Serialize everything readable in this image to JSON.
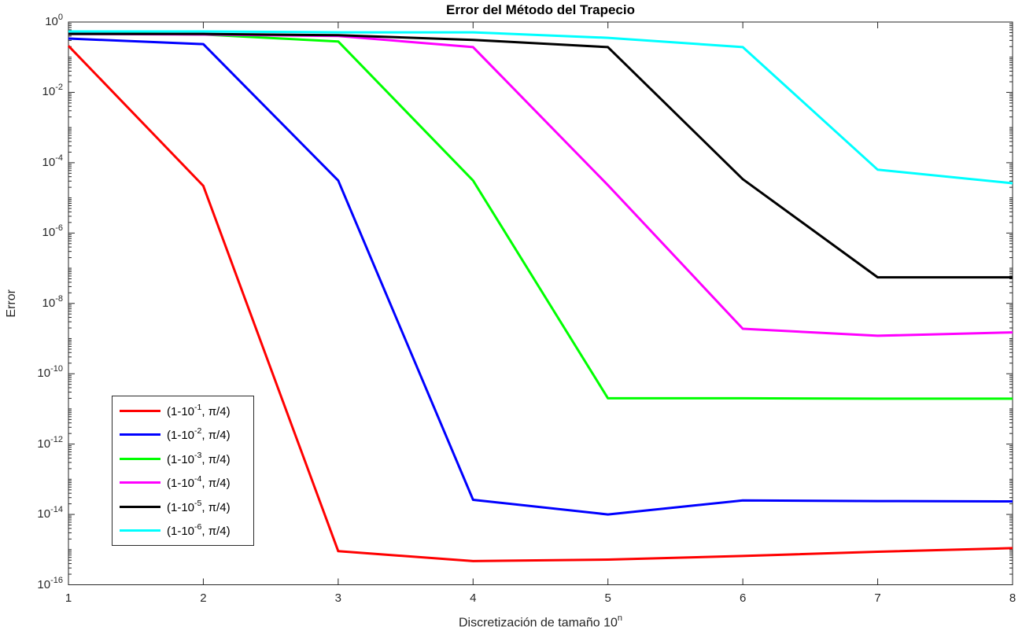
{
  "title": "Error del Método del Trapecio",
  "axes": {
    "x_label": {
      "pre": "Discretización de tamaño 10",
      "sup": "n"
    },
    "y_label": "Error",
    "x_ticks": [
      "1",
      "2",
      "3",
      "4",
      "5",
      "6",
      "7",
      "8"
    ],
    "y_ticks": [
      {
        "base": "10",
        "exp": "0"
      },
      {
        "base": "10",
        "exp": "-2"
      },
      {
        "base": "10",
        "exp": "-4"
      },
      {
        "base": "10",
        "exp": "-6"
      },
      {
        "base": "10",
        "exp": "-8"
      },
      {
        "base": "10",
        "exp": "-10"
      },
      {
        "base": "10",
        "exp": "-12"
      },
      {
        "base": "10",
        "exp": "-14"
      },
      {
        "base": "10",
        "exp": "-16"
      }
    ],
    "axis_color": "#262626"
  },
  "legend": {
    "entries": [
      {
        "pre": "(1-10",
        "exp": "-1",
        "post": ", π/4)",
        "color": "#ff0000"
      },
      {
        "pre": "(1-10",
        "exp": "-2",
        "post": ", π/4)",
        "color": "#0000ff"
      },
      {
        "pre": "(1-10",
        "exp": "-3",
        "post": ", π/4)",
        "color": "#00ff00"
      },
      {
        "pre": "(1-10",
        "exp": "-4",
        "post": ", π/4)",
        "color": "#ff00ff"
      },
      {
        "pre": "(1-10",
        "exp": "-5",
        "post": ", π/4)",
        "color": "#000000"
      },
      {
        "pre": "(1-10",
        "exp": "-6",
        "post": ", π/4)",
        "color": "#00ffff"
      }
    ]
  },
  "chart_data": {
    "type": "line",
    "title": "Error del Método del Trapecio",
    "xlabel": "Discretización de tamaño 10^n",
    "ylabel": "Error",
    "x": [
      1,
      2,
      3,
      4,
      5,
      6,
      7,
      8
    ],
    "x_range": [
      1,
      8
    ],
    "y_scale": "log",
    "y_range": [
      1e-16,
      1
    ],
    "grid": false,
    "legend_position": "lower-left",
    "line_width": 3,
    "series": [
      {
        "name": "(1-10^-1, π/4)",
        "color": "#ff0000",
        "values": [
          0.21,
          2.2e-05,
          9e-16,
          4.7e-16,
          5.2e-16,
          6.6e-16,
          8.7e-16,
          1.1e-15
        ]
      },
      {
        "name": "(1-10^-2, π/4)",
        "color": "#0000ff",
        "values": [
          0.34,
          0.235,
          3.1e-05,
          2.6e-14,
          1e-14,
          2.5e-14,
          2.4e-14,
          2.35e-14
        ]
      },
      {
        "name": "(1-10^-3, π/4)",
        "color": "#00ff00",
        "values": [
          0.49,
          0.44,
          0.28,
          3.1e-05,
          2e-11,
          2e-11,
          1.95e-11,
          1.95e-11
        ]
      },
      {
        "name": "(1-10^-4, π/4)",
        "color": "#ff00ff",
        "values": [
          0.46,
          0.44,
          0.4,
          0.193,
          2.3e-05,
          1.9e-09,
          1.2e-09,
          1.5e-09
        ]
      },
      {
        "name": "(1-10^-5, π/4)",
        "color": "#000000",
        "values": [
          0.46,
          0.46,
          0.42,
          0.31,
          0.193,
          3.4e-05,
          5.5e-08,
          5.5e-08
        ]
      },
      {
        "name": "(1-10^-6, π/4)",
        "color": "#00ffff",
        "values": [
          0.54,
          0.54,
          0.51,
          0.51,
          0.355,
          0.193,
          6.3e-05,
          2.6e-05
        ]
      }
    ]
  }
}
